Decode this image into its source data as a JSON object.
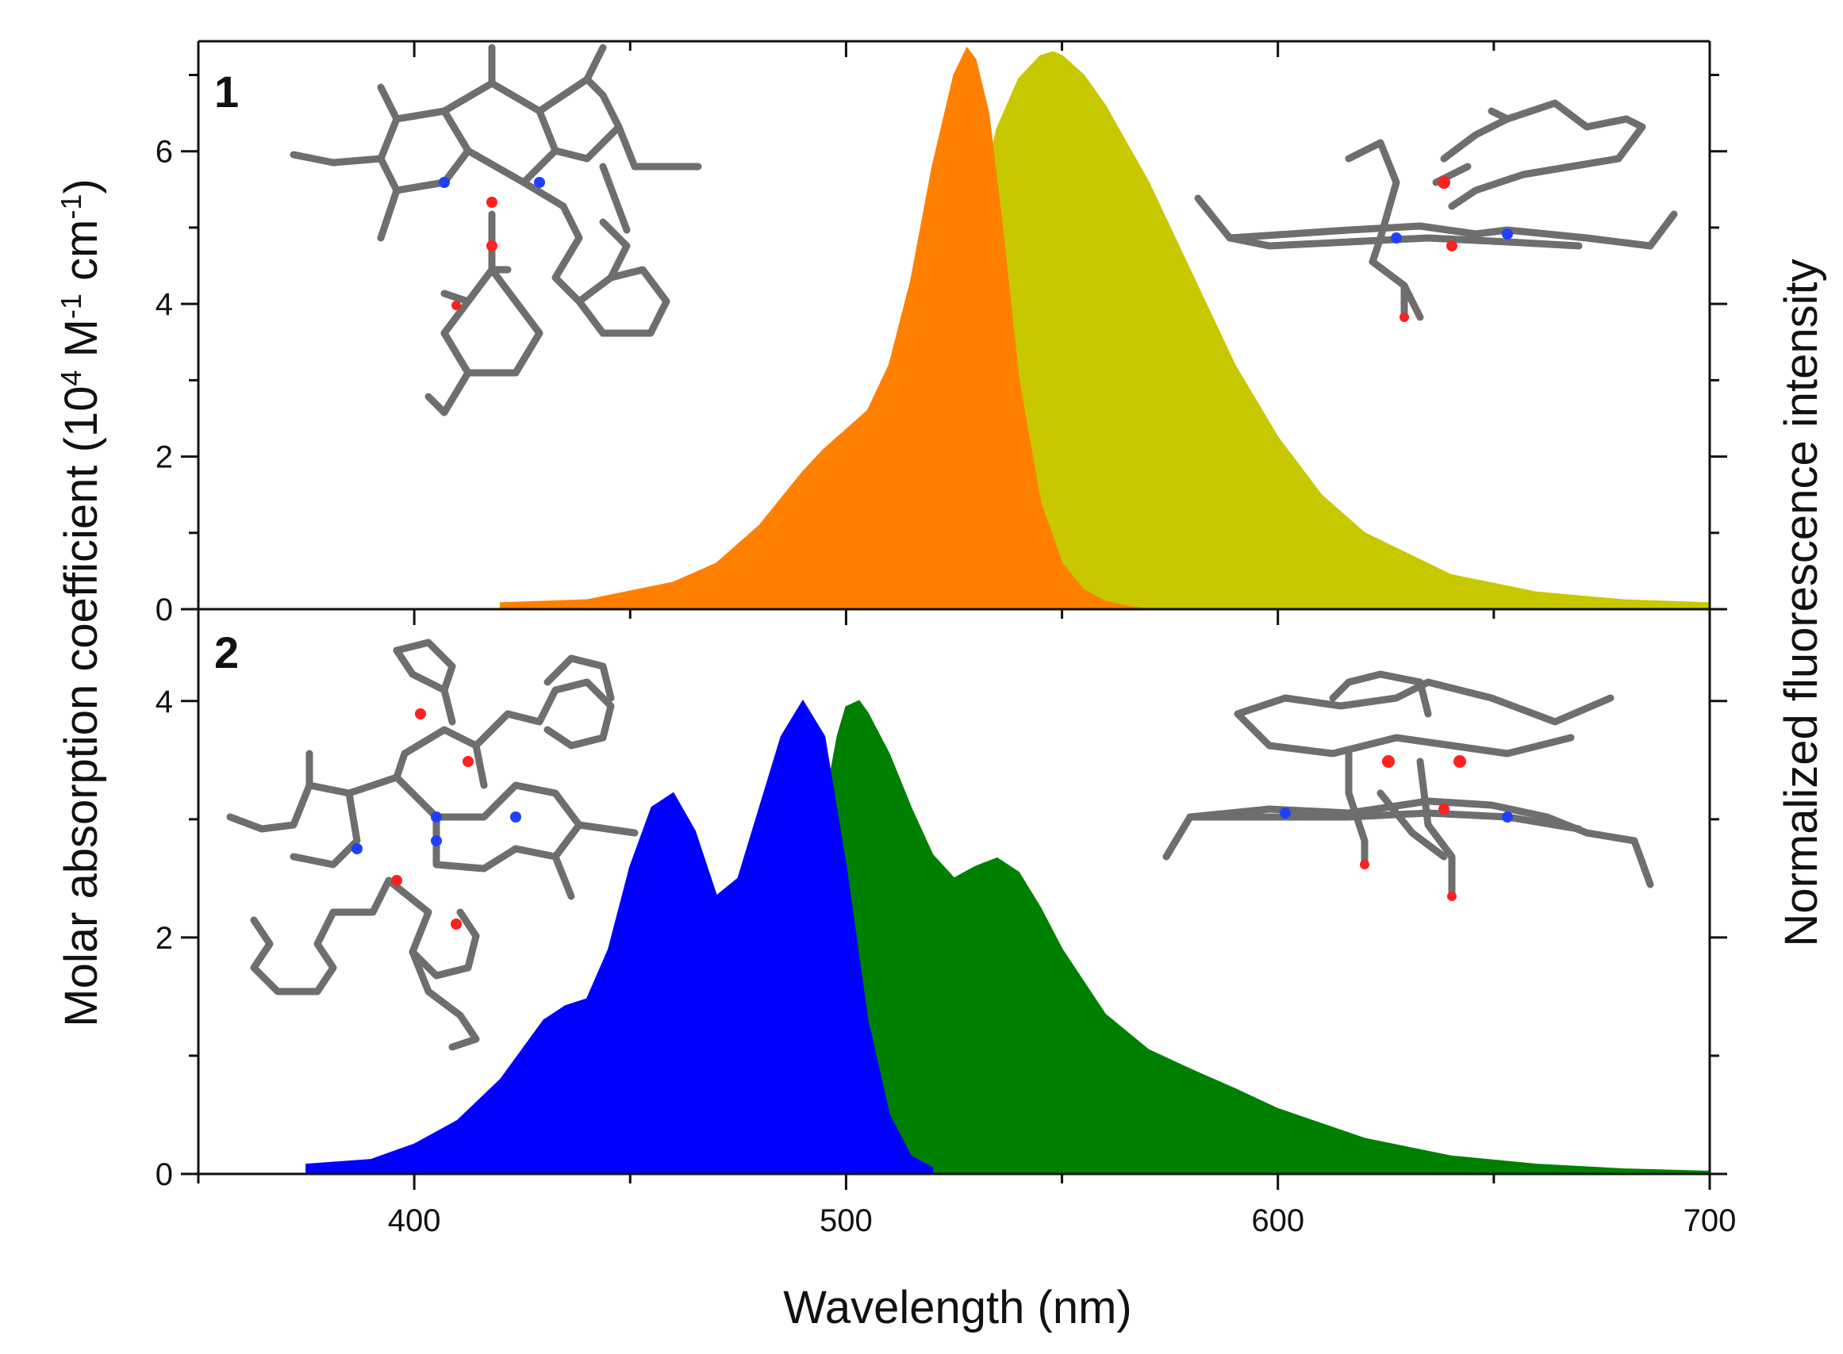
{
  "figure": {
    "xlabel": "Wavelength (nm)",
    "ylabel_left": "Molar absorption coefficient (10",
    "ylabel_left_exp1": "4",
    "ylabel_left_mid": " M",
    "ylabel_left_exp2": "-1",
    "ylabel_left_mid2": " cm",
    "ylabel_left_exp3": "-1",
    "ylabel_left_end": ")",
    "ylabel_right": "Normalized fluorescence intensity"
  },
  "chart_data": [
    {
      "type": "area",
      "panel_label": "1",
      "xlim": [
        350,
        700
      ],
      "ylim": [
        0,
        7.4
      ],
      "x_ticks": [
        400,
        500,
        600,
        700
      ],
      "y_ticks": [
        0,
        2,
        4,
        6
      ],
      "series": [
        {
          "role": "absorption",
          "color": "#ff8000",
          "x": [
            420,
            440,
            460,
            470,
            480,
            490,
            495,
            500,
            505,
            510,
            515,
            520,
            525,
            528,
            530,
            533,
            536,
            540,
            545,
            550,
            555,
            560,
            565,
            570
          ],
          "y": [
            0.08,
            0.12,
            0.35,
            0.6,
            1.1,
            1.8,
            2.1,
            2.35,
            2.6,
            3.2,
            4.3,
            5.8,
            7.0,
            7.35,
            7.2,
            6.5,
            5.1,
            3.0,
            1.4,
            0.6,
            0.25,
            0.1,
            0.04,
            0.0
          ]
        },
        {
          "role": "fluorescence",
          "color": "#c8c800",
          "x": [
            525,
            530,
            535,
            540,
            545,
            548,
            550,
            555,
            560,
            570,
            580,
            590,
            600,
            610,
            620,
            640,
            660,
            680,
            700
          ],
          "y": [
            3.8,
            5.2,
            6.3,
            6.95,
            7.25,
            7.3,
            7.25,
            7.0,
            6.6,
            5.6,
            4.4,
            3.2,
            2.25,
            1.5,
            1.0,
            0.45,
            0.22,
            0.12,
            0.08
          ]
        }
      ]
    },
    {
      "type": "area",
      "panel_label": "2",
      "xlim": [
        350,
        700
      ],
      "ylim": [
        0,
        4.75
      ],
      "x_ticks": [
        400,
        500,
        600,
        700
      ],
      "y_ticks": [
        0,
        2,
        4
      ],
      "series": [
        {
          "role": "absorption",
          "color": "#0000ff",
          "x": [
            375,
            390,
            400,
            410,
            420,
            430,
            435,
            440,
            445,
            450,
            455,
            460,
            465,
            470,
            475,
            480,
            485,
            490,
            495,
            500,
            505,
            510,
            515,
            520
          ],
          "y": [
            0.08,
            0.12,
            0.25,
            0.45,
            0.8,
            1.3,
            1.42,
            1.48,
            1.9,
            2.6,
            3.1,
            3.22,
            2.9,
            2.35,
            2.5,
            3.1,
            3.7,
            4.0,
            3.7,
            2.6,
            1.3,
            0.5,
            0.15,
            0.05
          ]
        },
        {
          "role": "fluorescence",
          "color": "#008000",
          "x": [
            495,
            498,
            500,
            503,
            505,
            510,
            515,
            520,
            525,
            530,
            535,
            540,
            545,
            550,
            560,
            570,
            580,
            590,
            600,
            620,
            640,
            660,
            680,
            700
          ],
          "y": [
            3.1,
            3.7,
            3.95,
            4.0,
            3.9,
            3.55,
            3.1,
            2.7,
            2.5,
            2.6,
            2.67,
            2.55,
            2.25,
            1.9,
            1.35,
            1.05,
            0.88,
            0.72,
            0.55,
            0.3,
            0.15,
            0.08,
            0.04,
            0.02
          ]
        }
      ]
    }
  ]
}
